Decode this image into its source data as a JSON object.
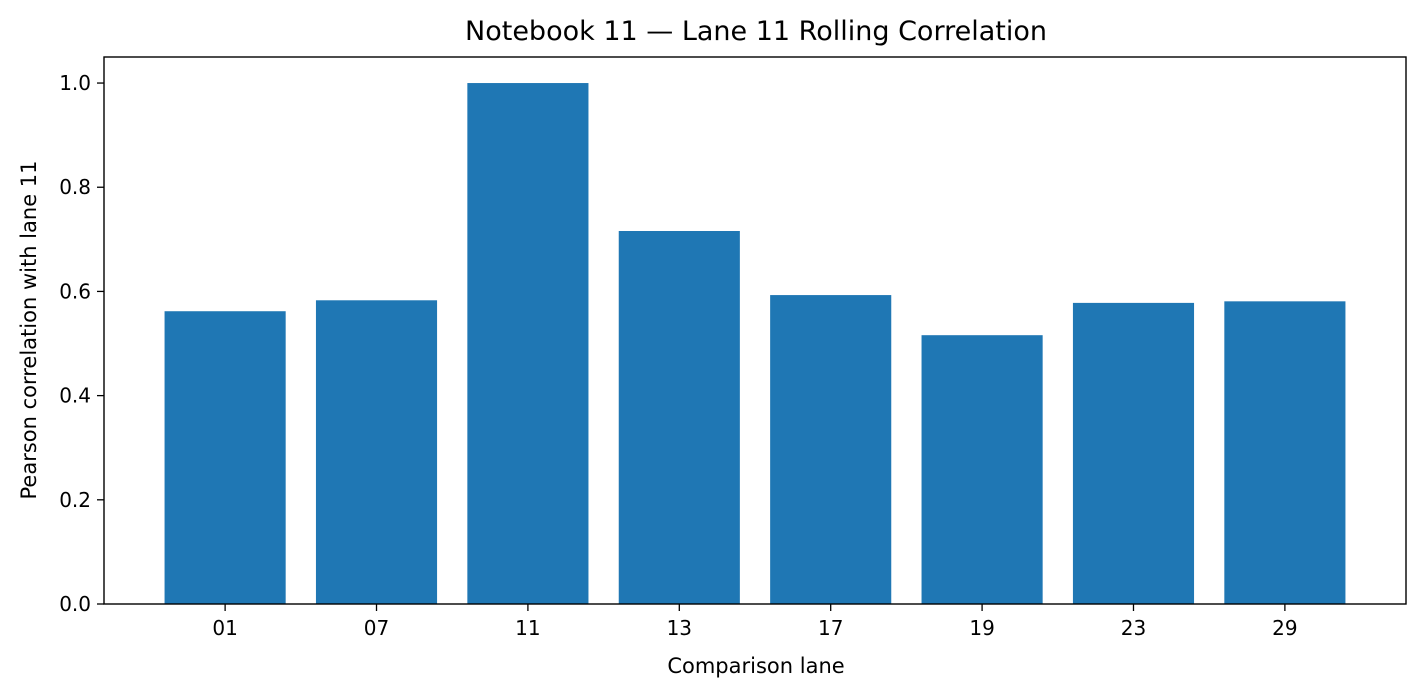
{
  "chart_data": {
    "type": "bar",
    "title": "Notebook 11 — Lane 11 Rolling Correlation",
    "xlabel": "Comparison lane",
    "ylabel": "Pearson correlation with lane 11",
    "categories": [
      "01",
      "07",
      "11",
      "13",
      "17",
      "19",
      "23",
      "29"
    ],
    "values": [
      0.562,
      0.583,
      1.0,
      0.716,
      0.593,
      0.516,
      0.578,
      0.581
    ],
    "ylim": [
      0,
      1.05
    ],
    "yticks": [
      0.0,
      0.2,
      0.4,
      0.6,
      0.8,
      1.0
    ],
    "ytick_labels": [
      "0.0",
      "0.2",
      "0.4",
      "0.6",
      "0.8",
      "1.0"
    ],
    "bar_color": "#1f77b4",
    "grid": false,
    "legend": "none"
  }
}
